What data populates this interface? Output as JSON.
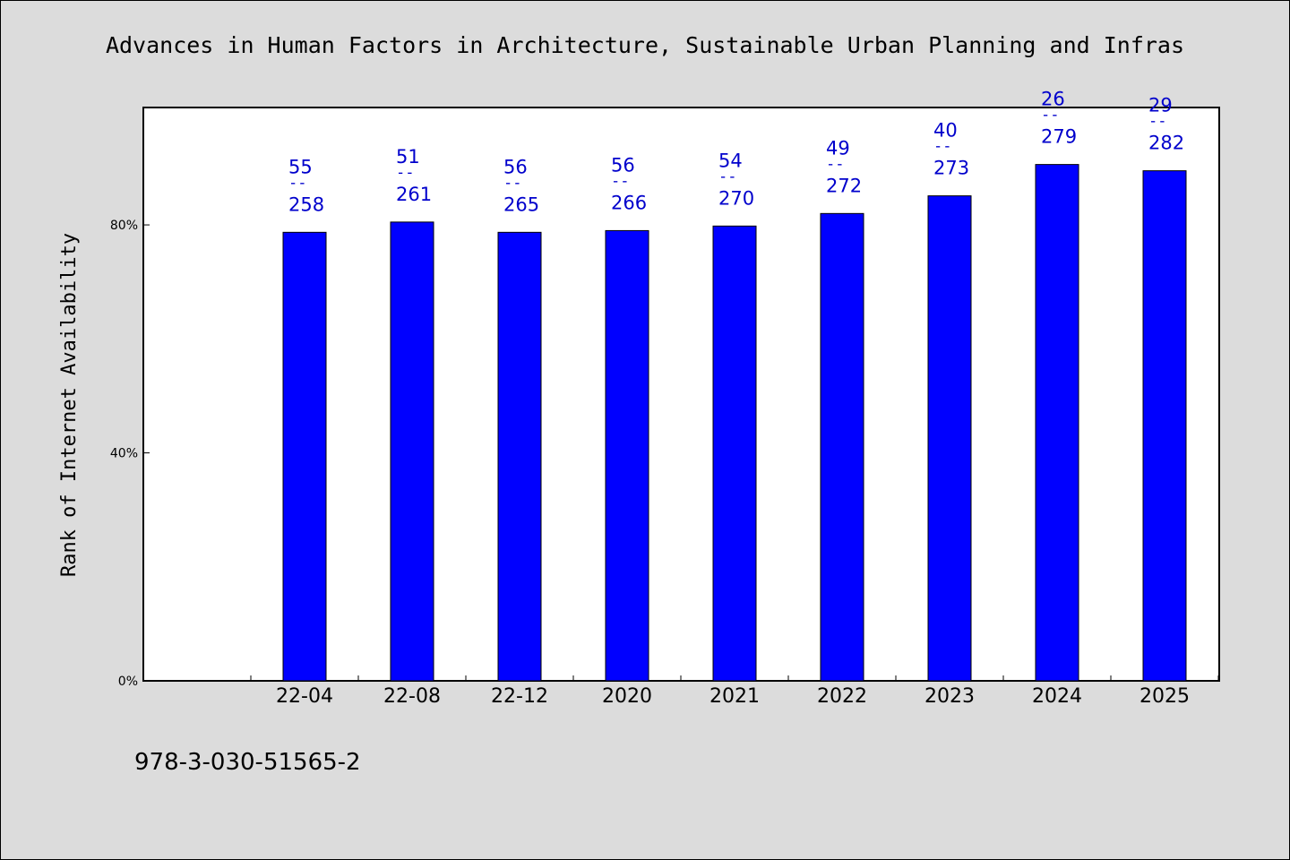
{
  "chart_data": {
    "type": "bar",
    "title": "Advances in Human Factors in Architecture, Sustainable Urban Planning and Infras",
    "ylabel": "Rank of Internet Availability",
    "xlabel": "",
    "categories": [
      "22-04",
      "22-08",
      "22-12",
      "2020",
      "2021",
      "2022",
      "2023",
      "2024",
      "2025"
    ],
    "values": [
      78.7,
      80.5,
      78.7,
      79.0,
      79.8,
      82.0,
      85.1,
      90.6,
      89.5
    ],
    "labels_top": [
      "55",
      "51",
      "56",
      "56",
      "54",
      "49",
      "40",
      "26",
      "29"
    ],
    "labels_separator": "--",
    "labels_bottom": [
      "258",
      "261",
      "265",
      "266",
      "270",
      "272",
      "273",
      "279",
      "282"
    ],
    "yticks": [
      0,
      40,
      80
    ],
    "ytick_labels": [
      "0%",
      "40%",
      "80%"
    ],
    "ylim": [
      0,
      100.6
    ],
    "grid": false,
    "bar_color": "#0000ff",
    "label_color": "#0000cc"
  },
  "footer": {
    "isbn": "978-3-030-51565-2"
  }
}
